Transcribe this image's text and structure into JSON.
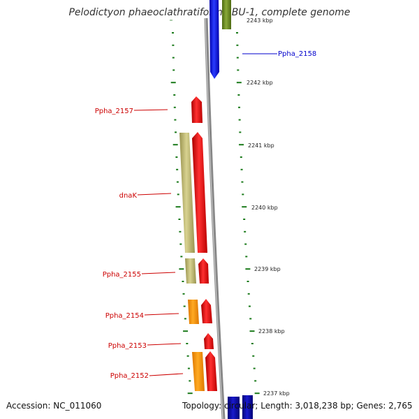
{
  "title": "Pelodictyon phaeoclathratiforme BU-1, complete genome",
  "footer": {
    "accession": "Accession: NC_011060",
    "info": "Topology: circular; Length: 3,018,238 bp; Genes: 2,765"
  },
  "scale_labels": [
    "2243 kbp",
    "2242 kbp",
    "2241 kbp",
    "2240 kbp",
    "2239 kbp",
    "2238 kbp",
    "2237 kbp"
  ],
  "gene_labels": [
    {
      "name": "Ppha_2158",
      "color": "#0000cc"
    },
    {
      "name": "Ppha_2157",
      "color": "#cc0000"
    },
    {
      "name": "dnaK",
      "color": "#cc0000"
    },
    {
      "name": "Ppha_2155",
      "color": "#cc0000"
    },
    {
      "name": "Ppha_2154",
      "color": "#cc0000"
    },
    {
      "name": "Ppha_2153",
      "color": "#cc0000"
    },
    {
      "name": "Ppha_2152",
      "color": "#cc0000"
    }
  ],
  "colors": {
    "red": "#ee1111",
    "blue": "#1122dd",
    "khaki": "#bdb76b",
    "orange": "#ff9900",
    "olive": "#6b8e23",
    "navy": "#000099",
    "tick": "#1a7a1a",
    "backbone": "#888888"
  }
}
